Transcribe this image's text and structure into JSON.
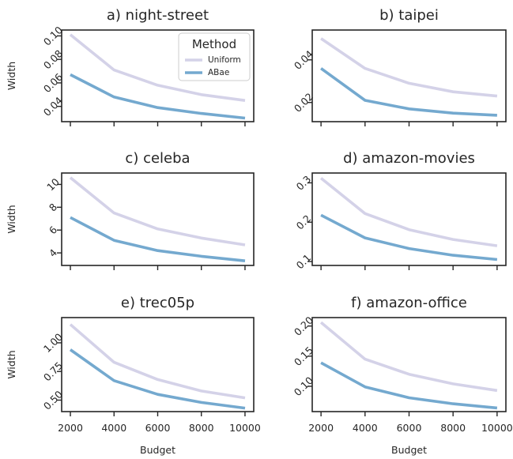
{
  "chart_data": [
    {
      "type": "line",
      "title": "a) night-street",
      "xlabel": "",
      "ylabel": "Width",
      "x": [
        2000,
        4000,
        6000,
        8000,
        10000
      ],
      "ylim": [
        0.027,
        0.105
      ],
      "yticks": [
        0.04,
        0.06,
        0.08,
        0.1
      ],
      "ytick_labels": [
        "0.04",
        "0.06",
        "0.08",
        "0.10"
      ],
      "series": [
        {
          "name": "Uniform",
          "values": [
            0.101,
            0.071,
            0.058,
            0.05,
            0.045
          ]
        },
        {
          "name": "ABae",
          "values": [
            0.067,
            0.048,
            0.039,
            0.034,
            0.03
          ]
        }
      ],
      "legend": {
        "title": "Method",
        "placement": "top-right"
      }
    },
    {
      "type": "line",
      "title": "b) taipei",
      "xlabel": "",
      "ylabel": "",
      "x": [
        2000,
        4000,
        6000,
        8000,
        10000
      ],
      "ylim": [
        0.011,
        0.054
      ],
      "yticks": [
        0.02,
        0.04
      ],
      "ytick_labels": [
        "0.02",
        "0.04"
      ],
      "series": [
        {
          "name": "Uniform",
          "values": [
            0.05,
            0.036,
            0.029,
            0.025,
            0.023
          ]
        },
        {
          "name": "ABae",
          "values": [
            0.036,
            0.021,
            0.017,
            0.015,
            0.014
          ]
        }
      ]
    },
    {
      "type": "line",
      "title": "c) celeba",
      "xlabel": "",
      "ylabel": "Width",
      "x": [
        2000,
        4000,
        6000,
        8000,
        10000
      ],
      "ylim": [
        2.9,
        11.0
      ],
      "yticks": [
        4,
        6,
        8,
        10
      ],
      "ytick_labels": [
        "4",
        "6",
        "8",
        "10"
      ],
      "series": [
        {
          "name": "Uniform",
          "values": [
            10.6,
            7.5,
            6.1,
            5.3,
            4.7
          ]
        },
        {
          "name": "ABae",
          "values": [
            7.1,
            5.1,
            4.2,
            3.7,
            3.3
          ]
        }
      ]
    },
    {
      "type": "line",
      "title": "d) amazon-movies",
      "xlabel": "",
      "ylabel": "",
      "x": [
        2000,
        4000,
        6000,
        8000,
        10000
      ],
      "ylim": [
        0.09,
        0.325
      ],
      "yticks": [
        0.1,
        0.2,
        0.3
      ],
      "ytick_labels": [
        "0.1",
        "0.2",
        "0.3"
      ],
      "series": [
        {
          "name": "Uniform",
          "values": [
            0.312,
            0.222,
            0.181,
            0.156,
            0.14
          ]
        },
        {
          "name": "ABae",
          "values": [
            0.218,
            0.16,
            0.133,
            0.116,
            0.105
          ]
        }
      ]
    },
    {
      "type": "line",
      "title": "e) trec05p",
      "xlabel": "Budget",
      "ylabel": "Width",
      "x": [
        2000,
        4000,
        6000,
        8000,
        10000
      ],
      "ylim": [
        0.4,
        1.22
      ],
      "yticks": [
        0.5,
        0.75,
        1.0
      ],
      "ytick_labels": [
        "0.50",
        "0.75",
        "1.00"
      ],
      "xticks": [
        2000,
        4000,
        6000,
        8000,
        10000
      ],
      "xtick_labels": [
        "2000",
        "4000",
        "6000",
        "8000",
        "10000"
      ],
      "series": [
        {
          "name": "Uniform",
          "values": [
            1.16,
            0.83,
            0.68,
            0.58,
            0.52
          ]
        },
        {
          "name": "ABae",
          "values": [
            0.94,
            0.67,
            0.55,
            0.48,
            0.43
          ]
        }
      ]
    },
    {
      "type": "line",
      "title": "f) amazon-office",
      "xlabel": "Budget",
      "ylabel": "",
      "x": [
        2000,
        4000,
        6000,
        8000,
        10000
      ],
      "ylim": [
        0.058,
        0.214
      ],
      "yticks": [
        0.1,
        0.15,
        0.2
      ],
      "ytick_labels": [
        "0.10",
        "0.15",
        "0.20"
      ],
      "xticks": [
        2000,
        4000,
        6000,
        8000,
        10000
      ],
      "xtick_labels": [
        "2000",
        "4000",
        "6000",
        "8000",
        "10000"
      ],
      "series": [
        {
          "name": "Uniform",
          "values": [
            0.206,
            0.145,
            0.12,
            0.104,
            0.093
          ]
        },
        {
          "name": "ABae",
          "values": [
            0.139,
            0.099,
            0.081,
            0.071,
            0.064
          ]
        }
      ]
    }
  ],
  "colors": {
    "Uniform": "#d4d2e8",
    "ABae": "#74a9cf",
    "frame": "#262626"
  }
}
